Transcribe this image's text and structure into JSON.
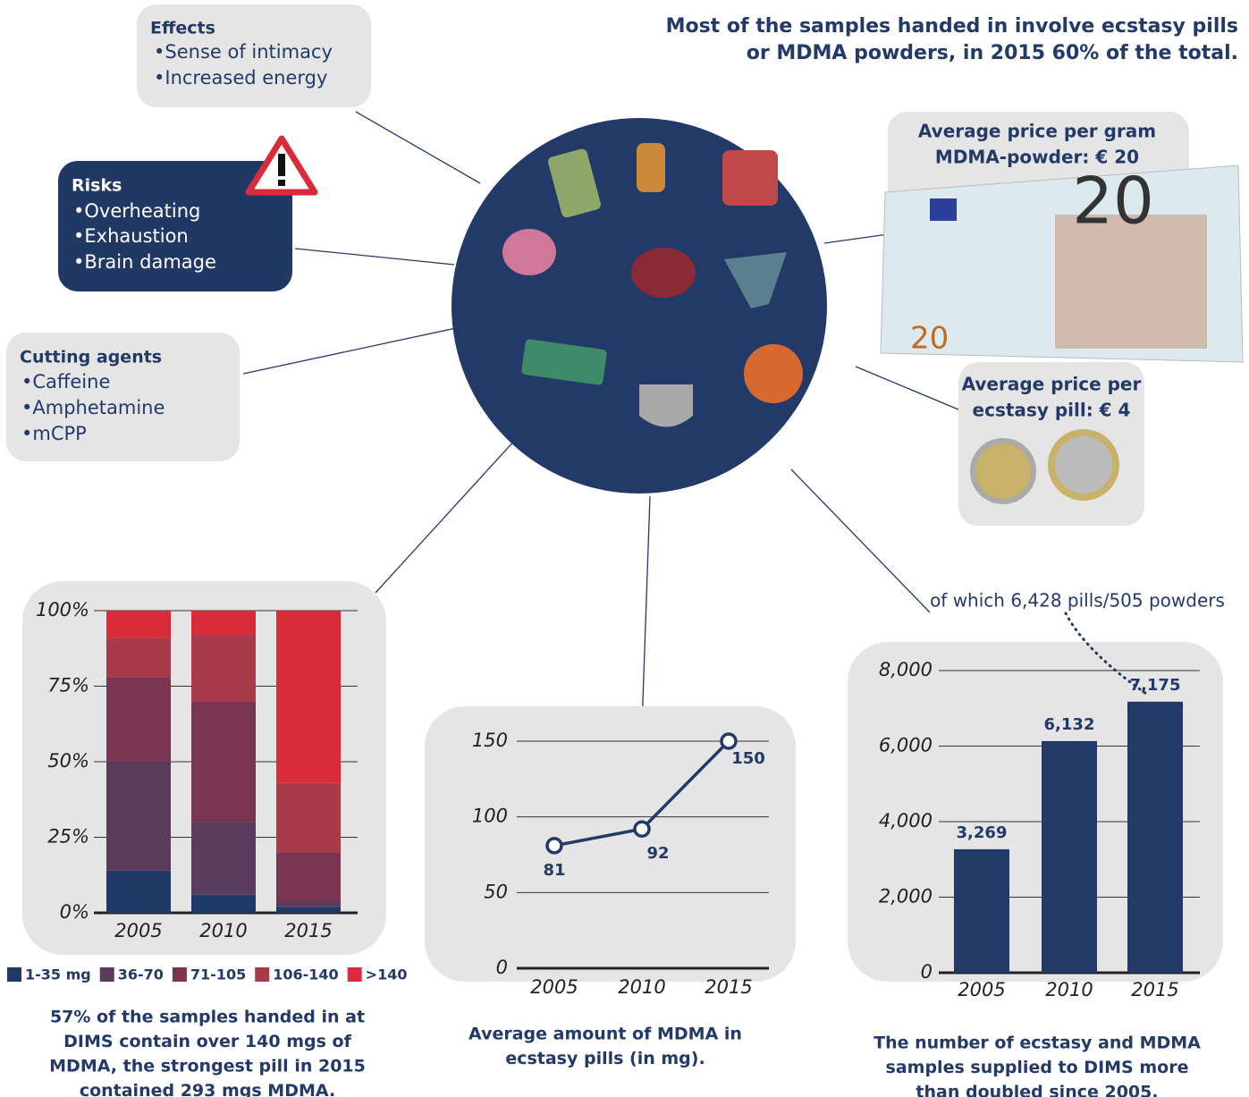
{
  "header": {
    "title": [
      "Most of the samples handed in involve ecstasy pills",
      "or MDMA powders, in 2015 60% of the total."
    ]
  },
  "boxes": {
    "effects": {
      "title": "Effects",
      "items": [
        "•Sense of intimacy",
        "•Increased energy"
      ]
    },
    "risks": {
      "title": "Risks",
      "items": [
        "•Overheating",
        "•Exhaustion",
        "•Brain damage"
      ]
    },
    "cutting": {
      "title": "Cutting agents",
      "items": [
        "•Caffeine",
        "•Amphetamine",
        "•mCPP"
      ]
    },
    "gram_price": {
      "lines": [
        "Average price per gram",
        "MDMA-powder: € 20"
      ]
    },
    "pill_price": {
      "lines": [
        "Average price per",
        "ecstasy pill: € 4"
      ]
    }
  },
  "chart_data": [
    {
      "type": "stacked_bar",
      "categories": [
        "2005",
        "2010",
        "2015"
      ],
      "series": [
        {
          "name": "1-35 mg",
          "color": "#1f3a66",
          "values": [
            14,
            6,
            2
          ]
        },
        {
          "name": "36-70",
          "color": "#5a3b5c",
          "values": [
            36,
            24,
            2
          ]
        },
        {
          "name": "71-105",
          "color": "#7a3550",
          "values": [
            28,
            40,
            16
          ]
        },
        {
          "name": "106-140",
          "color": "#a83a4a",
          "values": [
            13,
            22,
            23
          ]
        },
        {
          "name": ">140",
          "color": "#d92b3a",
          "values": [
            9,
            8,
            57
          ]
        }
      ],
      "ylim": [
        0,
        100
      ],
      "yticks": [
        {
          "value": 0,
          "label": "0%"
        },
        {
          "value": 25,
          "label": "25%"
        },
        {
          "value": 50,
          "label": "50%"
        },
        {
          "value": 75,
          "label": "75%"
        },
        {
          "value": 100,
          "label": "100%"
        }
      ],
      "grid": true,
      "caption": [
        "57% of the samples handed in at",
        "DIMS contain over 140 mgs of",
        "MDMA, the strongest pill in 2015",
        "contained 293 mgs MDMA."
      ]
    },
    {
      "type": "line",
      "categories": [
        "2005",
        "2010",
        "2015"
      ],
      "values": [
        81,
        92,
        150
      ],
      "color": "#233a68",
      "ylim": [
        0,
        150
      ],
      "yticks": [
        0,
        50,
        100,
        150
      ],
      "grid": true,
      "caption": [
        "Average amount of MDMA in",
        "ecstasy pills (in mg)."
      ]
    },
    {
      "type": "bar",
      "categories": [
        "2005",
        "2010",
        "2015"
      ],
      "values": [
        3269,
        6132,
        7175
      ],
      "value_labels": [
        "3,269",
        "6,132",
        "7,175"
      ],
      "color": "#233a68",
      "ylim": [
        0,
        8000
      ],
      "yticks": [
        0,
        {
          "value": 2000,
          "label": "2,000"
        },
        {
          "value": 4000,
          "label": "4,000"
        },
        {
          "value": 6000,
          "label": "6,000"
        },
        {
          "value": 8000,
          "label": "8,000"
        }
      ],
      "grid": true,
      "annotation": "of which 6,428 pills/505 powders",
      "caption": [
        "The number of ecstasy and MDMA",
        "samples supplied to DIMS more",
        "than doubled since 2005."
      ]
    }
  ]
}
